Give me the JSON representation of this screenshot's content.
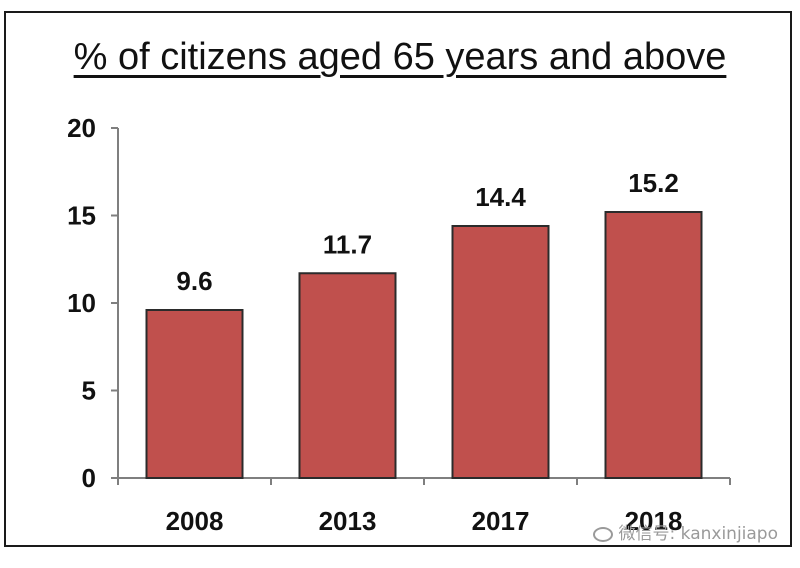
{
  "chart_data": {
    "type": "bar",
    "title": "% of citizens aged 65 years and above",
    "categories": [
      "2008",
      "2013",
      "2017",
      "2018"
    ],
    "values": [
      9.6,
      11.7,
      14.4,
      15.2
    ],
    "data_labels": [
      "9.6",
      "11.7",
      "14.4",
      "15.2"
    ],
    "yticks": [
      "0",
      "5",
      "10",
      "15",
      "20"
    ],
    "ylim": [
      0,
      20
    ],
    "xlabel": "",
    "ylabel": "",
    "grid": false,
    "legend": "none",
    "bar_color": "#c0504d",
    "bar_edge_color": "#2b2b2b"
  },
  "watermark": {
    "text": "微信号: kanxinjiapo",
    "icon": "wechat-icon"
  }
}
